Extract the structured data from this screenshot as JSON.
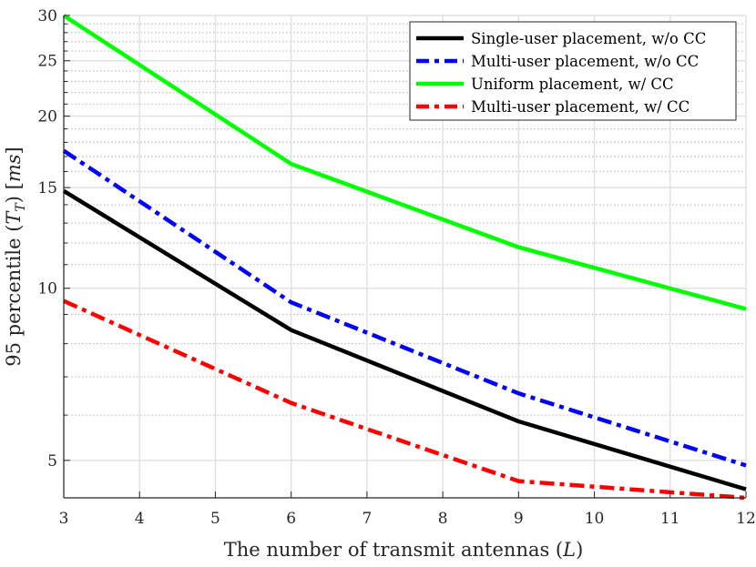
{
  "chart_data": {
    "type": "line",
    "title": "",
    "xlabel": "The number of transmit antennas (L)",
    "xlabel_parts": {
      "prefix": "The number of transmit antennas (",
      "var": "L",
      "suffix": ")"
    },
    "ylabel": "95 percentile (T_T) [ms]",
    "ylabel_parts": {
      "prefix": "95 percentile (",
      "var": "T",
      "sub": "T",
      "mid": ") [",
      "unit": "ms",
      "suffix": "]"
    },
    "xlim": [
      3,
      12
    ],
    "ylim": [
      4.3,
      30
    ],
    "yscale": "log",
    "grid": true,
    "legend_position": "top-right",
    "xticks": [
      3,
      4,
      5,
      6,
      7,
      8,
      9,
      10,
      11,
      12
    ],
    "yticks": [
      5,
      10,
      15,
      20,
      25,
      30
    ],
    "x": [
      3,
      6,
      9,
      12
    ],
    "series": [
      {
        "name": "Single-user placement, w/o CC",
        "color": "#000000",
        "style": "solid",
        "values": [
          14.8,
          8.45,
          5.85,
          4.45
        ]
      },
      {
        "name": "Multi-user placement, w/o CC",
        "color": "#0000ff",
        "style": "dashdot",
        "values": [
          17.4,
          9.45,
          6.55,
          4.9
        ]
      },
      {
        "name": "Uniform placement, w/ CC",
        "color": "#00ff00",
        "style": "solid",
        "values": [
          30.0,
          16.5,
          11.8,
          9.2
        ]
      },
      {
        "name": "Multi-user placement, w/ CC",
        "color": "#ff0000",
        "style": "dashdot",
        "values": [
          9.5,
          6.3,
          4.6,
          4.3
        ]
      }
    ]
  }
}
